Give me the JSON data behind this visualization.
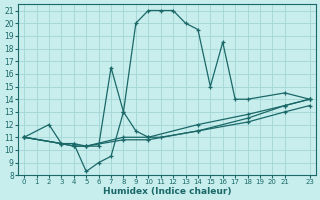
{
  "xlabel": "Humidex (Indice chaleur)",
  "bg_color": "#c8eded",
  "grid_color": "#a8d8d8",
  "line_color": "#1a6868",
  "xlim": [
    -0.5,
    23.5
  ],
  "ylim": [
    8,
    21.5
  ],
  "xticks": [
    0,
    1,
    2,
    3,
    4,
    5,
    6,
    7,
    8,
    9,
    10,
    11,
    12,
    13,
    14,
    15,
    16,
    17,
    18,
    19,
    20,
    21,
    23
  ],
  "yticks": [
    8,
    9,
    10,
    11,
    12,
    13,
    14,
    15,
    16,
    17,
    18,
    19,
    20,
    21
  ],
  "lines": [
    {
      "x": [
        0,
        2,
        3,
        4,
        5,
        6,
        7,
        8,
        9,
        10,
        11,
        12,
        13,
        14,
        15,
        16,
        17,
        18,
        21,
        23
      ],
      "y": [
        11,
        12,
        10.5,
        10.5,
        8.3,
        9.0,
        9.5,
        13.0,
        20.0,
        21.0,
        21.0,
        21.0,
        20.0,
        19.5,
        15.0,
        18.5,
        14.0,
        14.0,
        14.5,
        14.0
      ]
    },
    {
      "x": [
        0,
        3,
        4,
        5,
        6,
        7,
        8,
        9,
        10,
        11,
        14,
        18,
        21,
        23
      ],
      "y": [
        11,
        10.5,
        10.5,
        10.3,
        10.3,
        16.5,
        13.0,
        11.5,
        11.0,
        11.0,
        11.5,
        12.5,
        13.5,
        14.0
      ]
    },
    {
      "x": [
        0,
        3,
        4,
        5,
        8,
        10,
        14,
        18,
        21,
        23
      ],
      "y": [
        11,
        10.5,
        10.3,
        10.3,
        11.0,
        11.0,
        12.0,
        12.8,
        13.5,
        14.0
      ]
    },
    {
      "x": [
        0,
        3,
        4,
        5,
        8,
        10,
        14,
        18,
        21,
        23
      ],
      "y": [
        11,
        10.5,
        10.3,
        10.3,
        10.8,
        10.8,
        11.5,
        12.2,
        13.0,
        13.5
      ]
    }
  ]
}
